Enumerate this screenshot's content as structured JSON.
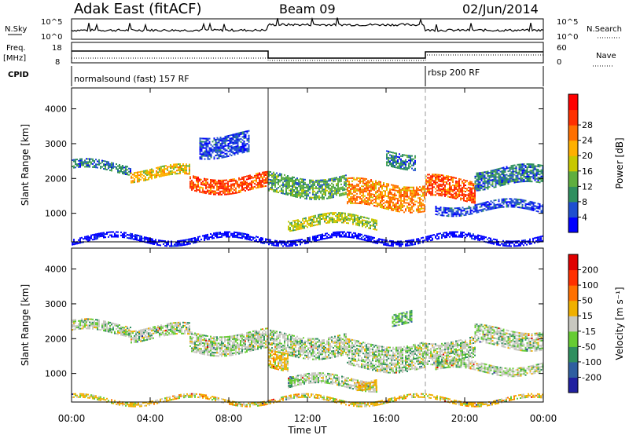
{
  "header": {
    "radar": "Adak East (fitACF)",
    "beam": "Beam 09",
    "date": "02/Jun/2014"
  },
  "strips": {
    "nsky_label": "N.Sky",
    "nsky_ticks": [
      "10^5",
      "10^0"
    ],
    "nsearch_label": "N.Search",
    "nsearch_ticks": [
      "10^5",
      "10^0"
    ],
    "freq_label": "Freq.",
    "freq_unit": "[MHz]",
    "freq_ticks": [
      "18",
      "8"
    ],
    "nave_label": "Nave",
    "nave_ticks": [
      "60",
      "0"
    ],
    "cpid_label": "CPID",
    "programs": [
      "normalsound (fast) 157 RF",
      "rbsp 200 RF"
    ]
  },
  "chart_data": [
    {
      "type": "heatmap",
      "name_printed": "",
      "ylabel": "Slant Range [km]",
      "xlabel": "",
      "x_ticks": [
        "00:00",
        "04:00",
        "08:00",
        "12:00",
        "16:00",
        "20:00",
        "00:00"
      ],
      "y_ticks": [
        "1000",
        "2000",
        "3000",
        "4000"
      ],
      "ylim": [
        180,
        4600
      ],
      "xlim_hours": [
        0,
        24
      ],
      "colorbar": {
        "label": "Power [dB]",
        "ticks": [
          "4",
          "8",
          "12",
          "16",
          "20",
          "24",
          "28"
        ],
        "colors": [
          "#0000ff",
          "#1f4fd0",
          "#2f8f5f",
          "#5faf3f",
          "#c8c800",
          "#ffb000",
          "#ff7000",
          "#ff3000",
          "#ff0000"
        ]
      },
      "bands": [
        {
          "t0": 0.0,
          "t1": 3.0,
          "r0": 2200,
          "r1": 2450,
          "level": 2
        },
        {
          "t0": 3.0,
          "t1": 6.0,
          "r0": 2000,
          "r1": 2300,
          "level": 5
        },
        {
          "t0": 6.0,
          "t1": 10.0,
          "r0": 1650,
          "r1": 2100,
          "level": 7
        },
        {
          "t0": 10.0,
          "t1": 14.0,
          "r0": 1550,
          "r1": 2100,
          "level": 3
        },
        {
          "t0": 14.0,
          "t1": 18.0,
          "r0": 1150,
          "r1": 1900,
          "level": 6
        },
        {
          "t0": 11.0,
          "t1": 15.5,
          "r0": 600,
          "r1": 900,
          "level": 4
        },
        {
          "t0": 18.0,
          "t1": 20.5,
          "r0": 1400,
          "r1": 2000,
          "level": 7
        },
        {
          "t0": 20.5,
          "t1": 24.0,
          "r0": 1800,
          "r1": 2300,
          "level": 2
        },
        {
          "t0": 18.5,
          "t1": 24.0,
          "r0": 1050,
          "r1": 1300,
          "level": 1
        },
        {
          "t0": 6.5,
          "t1": 9.0,
          "r0": 2700,
          "r1": 3300,
          "level": 1
        },
        {
          "t0": 16.0,
          "t1": 17.5,
          "r0": 2350,
          "r1": 2800,
          "level": 2
        },
        {
          "t0": 0.0,
          "t1": 24.0,
          "r0": 180,
          "r1": 350,
          "level": 0
        }
      ]
    },
    {
      "type": "heatmap",
      "name_printed": "",
      "ylabel": "Slant Range [km]",
      "xlabel": "Time UT",
      "x_ticks": [
        "00:00",
        "04:00",
        "08:00",
        "12:00",
        "16:00",
        "20:00",
        "00:00"
      ],
      "y_ticks": [
        "1000",
        "2000",
        "3000",
        "4000"
      ],
      "ylim": [
        180,
        4600
      ],
      "xlim_hours": [
        0,
        24
      ],
      "colorbar": {
        "label": "Velocity [m s⁻¹]",
        "ticks": [
          "200",
          "100",
          "50",
          "15",
          "-15",
          "-50",
          "-100",
          "-200"
        ],
        "colors": [
          "#2020a0",
          "#2f5fa0",
          "#2f8f5f",
          "#66cc33",
          "#c8c8c0",
          "#f0b000",
          "#ff7000",
          "#ff3000",
          "#e00000"
        ]
      },
      "bands": [
        {
          "t0": 0.0,
          "t1": 3.0,
          "r0": 2150,
          "r1": 2450,
          "level": 4
        },
        {
          "t0": 3.0,
          "t1": 6.0,
          "r0": 2000,
          "r1": 2350,
          "level": 4
        },
        {
          "t0": 6.0,
          "t1": 10.0,
          "r0": 1650,
          "r1": 2200,
          "level": 4
        },
        {
          "t0": 10.0,
          "t1": 14.0,
          "r0": 1550,
          "r1": 2150,
          "level": 4
        },
        {
          "t0": 10.0,
          "t1": 11.0,
          "r0": 1200,
          "r1": 1700,
          "level": 5
        },
        {
          "t0": 14.0,
          "t1": 18.0,
          "r0": 1150,
          "r1": 1900,
          "level": 4
        },
        {
          "t0": 11.0,
          "t1": 15.5,
          "r0": 600,
          "r1": 900,
          "level": 4
        },
        {
          "t0": 14.5,
          "t1": 15.5,
          "r0": 650,
          "r1": 900,
          "level": 5
        },
        {
          "t0": 11.0,
          "t1": 11.5,
          "r0": 600,
          "r1": 800,
          "level": 3
        },
        {
          "t0": 18.0,
          "t1": 20.5,
          "r0": 1400,
          "r1": 2000,
          "level": 4
        },
        {
          "t0": 20.5,
          "t1": 24.0,
          "r0": 1800,
          "r1": 2300,
          "level": 4
        },
        {
          "t0": 18.5,
          "t1": 24.0,
          "r0": 1050,
          "r1": 1300,
          "level": 4
        },
        {
          "t0": 16.3,
          "t1": 17.3,
          "r0": 2450,
          "r1": 2800,
          "level": 3
        },
        {
          "t0": 0.0,
          "t1": 24.0,
          "r0": 180,
          "r1": 300,
          "level": 5
        }
      ]
    }
  ]
}
